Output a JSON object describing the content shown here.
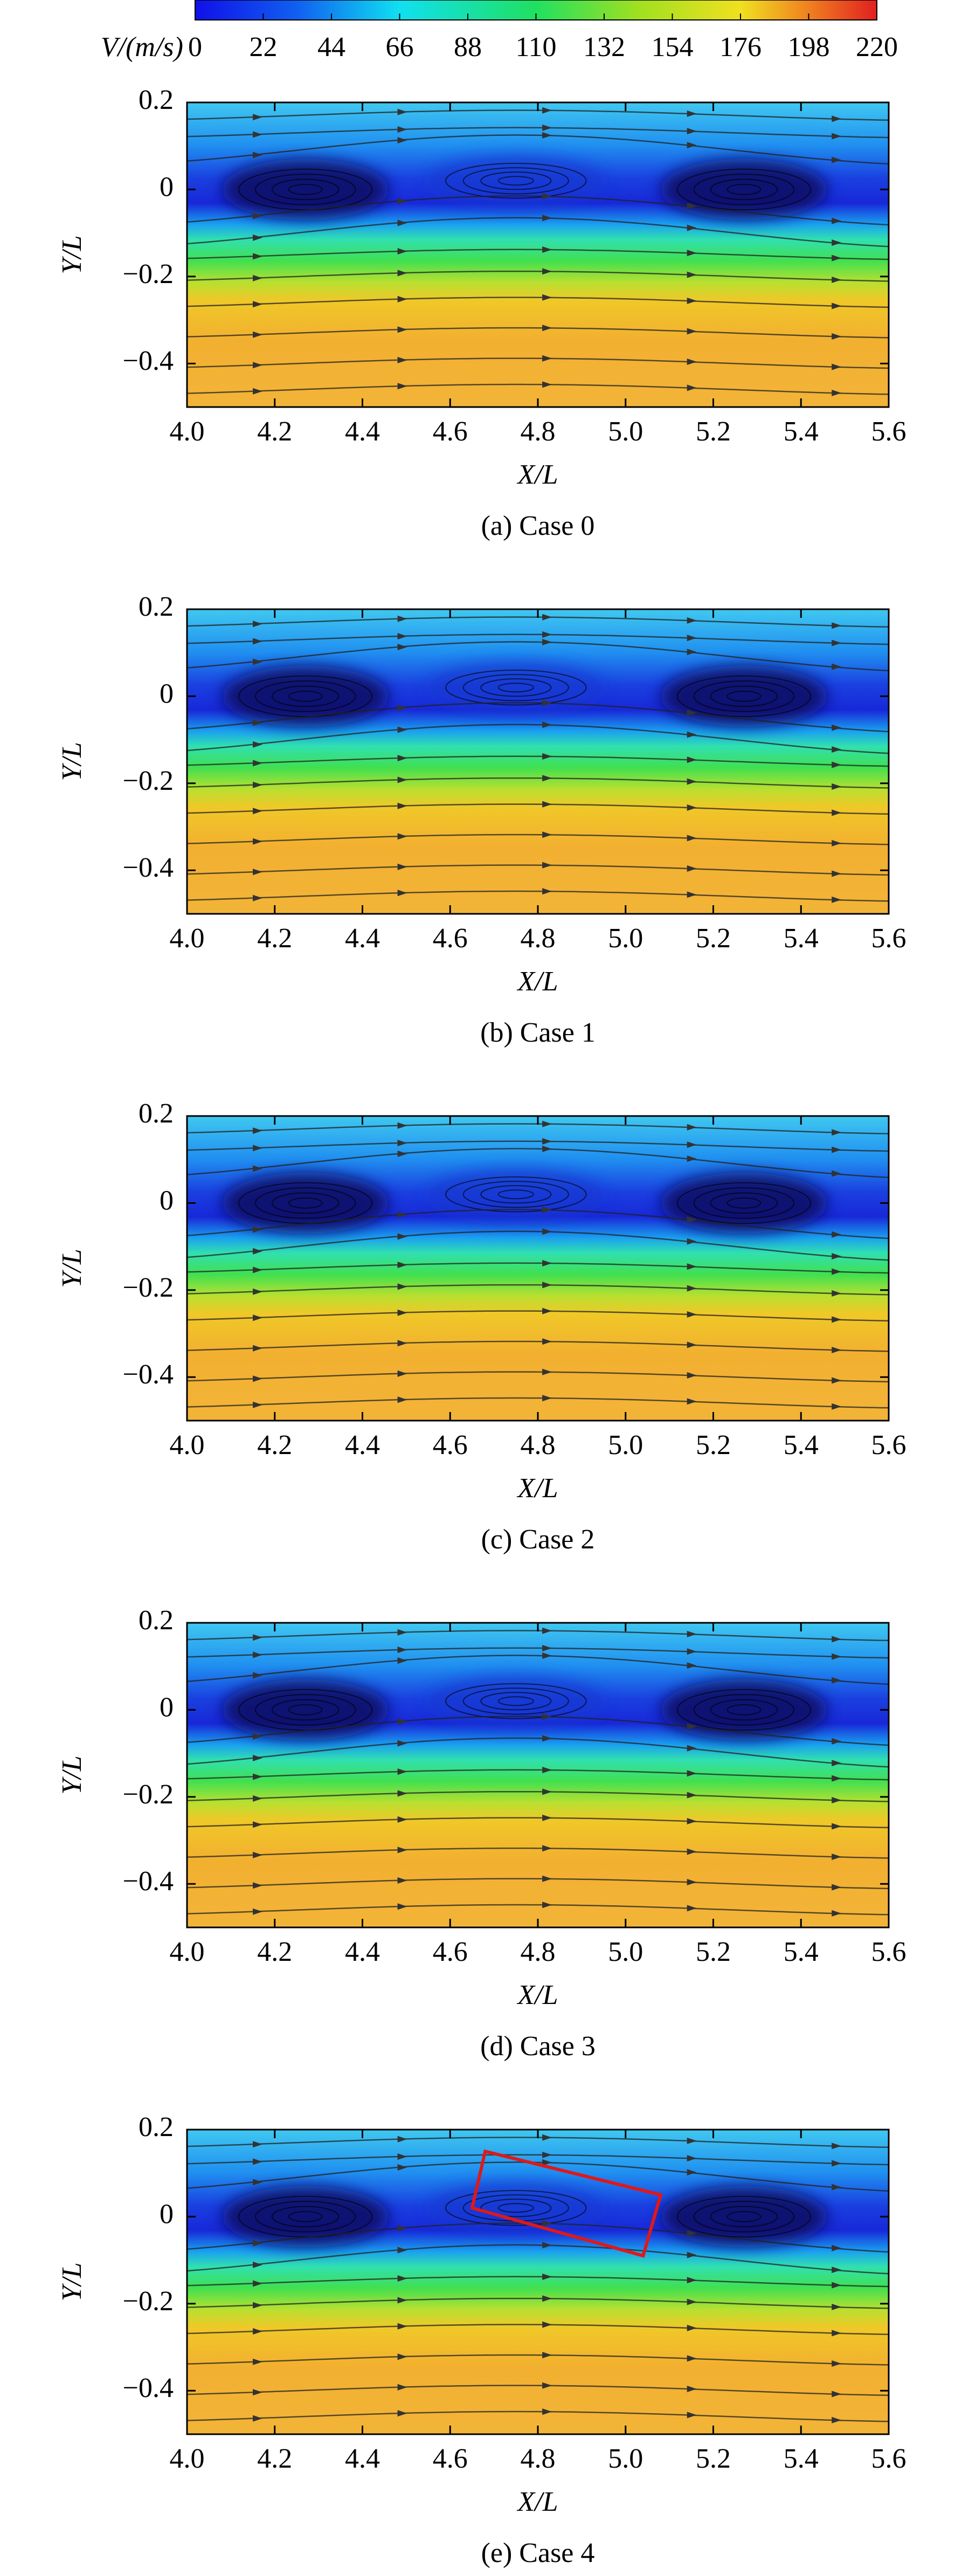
{
  "colorbar": {
    "label": "V/(m/s)",
    "lim": [
      0,
      220
    ],
    "ticks": [
      0,
      22,
      44,
      66,
      88,
      110,
      132,
      154,
      176,
      198,
      220
    ]
  },
  "chart_data": [
    {
      "type": "contour",
      "caption": "(a) Case 0",
      "xlabel": "X/L",
      "ylabel": "Y/L",
      "xlim": [
        4.0,
        5.6
      ],
      "xticks": [
        {
          "value": 4,
          "label": "4.0"
        },
        4.2,
        4.4,
        4.6,
        4.8,
        {
          "value": 5,
          "label": "5.0"
        },
        5.2,
        5.4,
        5.6
      ],
      "ylim": [
        -0.5,
        0.2
      ],
      "yticks": [
        {
          "value": -0.4,
          "label": "−0.4"
        },
        {
          "value": -0.2,
          "label": "−0.2"
        },
        0,
        0.2
      ]
    },
    {
      "type": "contour",
      "caption": "(b) Case 1",
      "xlabel": "X/L",
      "ylabel": "Y/L",
      "xlim": [
        4.0,
        5.6
      ],
      "xticks": [
        {
          "value": 4,
          "label": "4.0"
        },
        4.2,
        4.4,
        4.6,
        4.8,
        {
          "value": 5,
          "label": "5.0"
        },
        5.2,
        5.4,
        5.6
      ],
      "ylim": [
        -0.5,
        0.2
      ],
      "yticks": [
        {
          "value": -0.4,
          "label": "−0.4"
        },
        {
          "value": -0.2,
          "label": "−0.2"
        },
        0,
        0.2
      ]
    },
    {
      "type": "contour",
      "caption": "(c) Case 2",
      "xlabel": "X/L",
      "ylabel": "Y/L",
      "xlim": [
        4.0,
        5.6
      ],
      "xticks": [
        {
          "value": 4,
          "label": "4.0"
        },
        4.2,
        4.4,
        4.6,
        4.8,
        {
          "value": 5,
          "label": "5.0"
        },
        5.2,
        5.4,
        5.6
      ],
      "ylim": [
        -0.5,
        0.2
      ],
      "yticks": [
        {
          "value": -0.4,
          "label": "−0.4"
        },
        {
          "value": -0.2,
          "label": "−0.2"
        },
        0,
        0.2
      ]
    },
    {
      "type": "contour",
      "caption": "(d) Case 3",
      "xlabel": "X/L",
      "ylabel": "Y/L",
      "xlim": [
        4.0,
        5.6
      ],
      "xticks": [
        {
          "value": 4,
          "label": "4.0"
        },
        4.2,
        4.4,
        4.6,
        4.8,
        {
          "value": 5,
          "label": "5.0"
        },
        5.2,
        5.4,
        5.6
      ],
      "ylim": [
        -0.5,
        0.2
      ],
      "yticks": [
        {
          "value": -0.4,
          "label": "−0.4"
        },
        {
          "value": -0.2,
          "label": "−0.2"
        },
        0,
        0.2
      ]
    },
    {
      "type": "contour",
      "caption": "(e) Case 4",
      "xlabel": "X/L",
      "ylabel": "Y/L",
      "xlim": [
        4.0,
        5.6
      ],
      "xticks": [
        {
          "value": 4,
          "label": "4.0"
        },
        4.2,
        4.4,
        4.6,
        4.8,
        {
          "value": 5,
          "label": "5.0"
        },
        5.2,
        5.4,
        5.6
      ],
      "ylim": [
        -0.5,
        0.2
      ],
      "yticks": [
        {
          "value": -0.4,
          "label": "−0.4"
        },
        {
          "value": -0.2,
          "label": "−0.2"
        },
        0,
        0.2
      ]
    }
  ]
}
